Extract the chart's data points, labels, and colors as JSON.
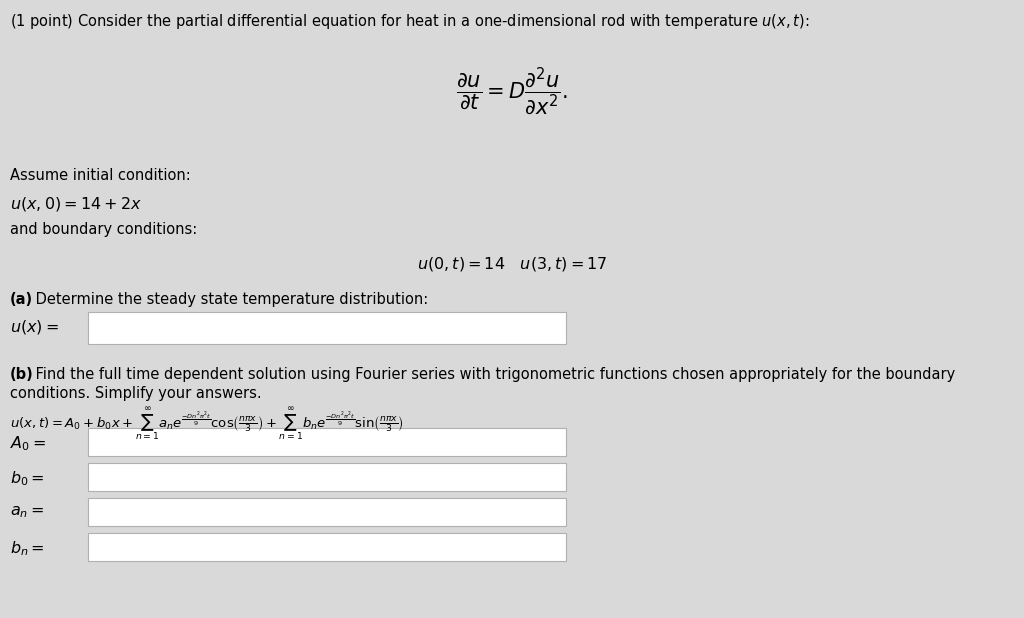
{
  "bg_color": "#d9d9d9",
  "text_color": "#000000",
  "white_box_color": "#ffffff",
  "white_box_edge": "#b0b0b0",
  "title_line": "(1 point) Consider the partial differential equation for heat in a one-dimensional rod with temperature $u(x,t)$:",
  "pde": "$\\dfrac{\\partial u}{\\partial t} = D\\dfrac{\\partial^2 u}{\\partial x^2}.$",
  "assume_line": "Assume initial condition:",
  "ic_line": "$u(x,0) = 14 + 2x$",
  "bc_label": "and boundary conditions:",
  "bc_line": "$u(0,t) = 14 \\quad u(3,t) = 17$",
  "part_a_bold": "(a)",
  "part_a_rest": " Determine the steady state temperature distribution:",
  "part_a_var": "$u(x) = $",
  "part_b_bold": "(b)",
  "part_b_rest": " Find the full time dependent solution using Fourier series with trigonometric functions chosen appropriately for the boundary",
  "part_b_label2": "conditions. Simplify your answers.",
  "uxt_line": "$u(x,t) = A_0 + b_0 x + \\sum_{n=1}^{\\infty} a_n e^{\\frac{-Dn^2\\pi^2 t}{9}} \\cos\\!\\left(\\frac{n\\pi x}{3}\\right) + \\sum_{n=1}^{\\infty} b_n e^{\\frac{-Dn^2\\pi^2 t}{9}} \\sin\\!\\left(\\frac{n\\pi x}{3}\\right)$",
  "A0_var": "$A_0 = $",
  "b0_var": "$b_0 = $",
  "an_var": "$a_n = $",
  "bn_var": "$b_n = $",
  "figsize": [
    10.24,
    6.18
  ],
  "dpi": 100
}
